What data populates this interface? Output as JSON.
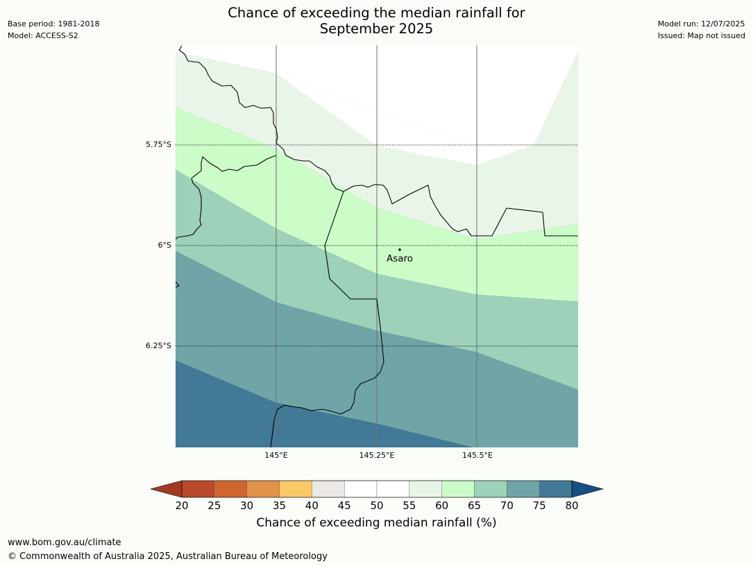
{
  "header": {
    "title_line1": "Chance of exceeding the median rainfall for",
    "title_line2": "September 2025",
    "base_period": "Base period: 1981-2018",
    "model": "Model: ACCESS-S2",
    "model_run": "Model run: 12/07/2025",
    "issued": "Issued: Map not issued"
  },
  "map": {
    "lat_labels": [
      "5.75°S",
      "6°S",
      "6.25°S"
    ],
    "lon_labels": [
      "145°E",
      "145.25°E",
      "145.5°E"
    ],
    "place": "Asaro"
  },
  "colorbar": {
    "ticks": [
      "20",
      "25",
      "30",
      "35",
      "40",
      "45",
      "50",
      "55",
      "60",
      "65",
      "70",
      "75",
      "80"
    ],
    "colors": [
      "#a33a23",
      "#b8492a",
      "#d0662f",
      "#e3924a",
      "#fbc867",
      "#ebe9e4",
      "#ffffff",
      "#ffffff",
      "#eaf5ea",
      "#ccfcc8",
      "#9dd1b9",
      "#70a5a8",
      "#417997",
      "#174e85"
    ],
    "label": "Chance of exceeding median rainfall (%)"
  },
  "footer": {
    "url": "www.bom.gov.au/climate",
    "copyright": "© Commonwealth of Australia 2025, Australian Bureau of Meteorology"
  }
}
